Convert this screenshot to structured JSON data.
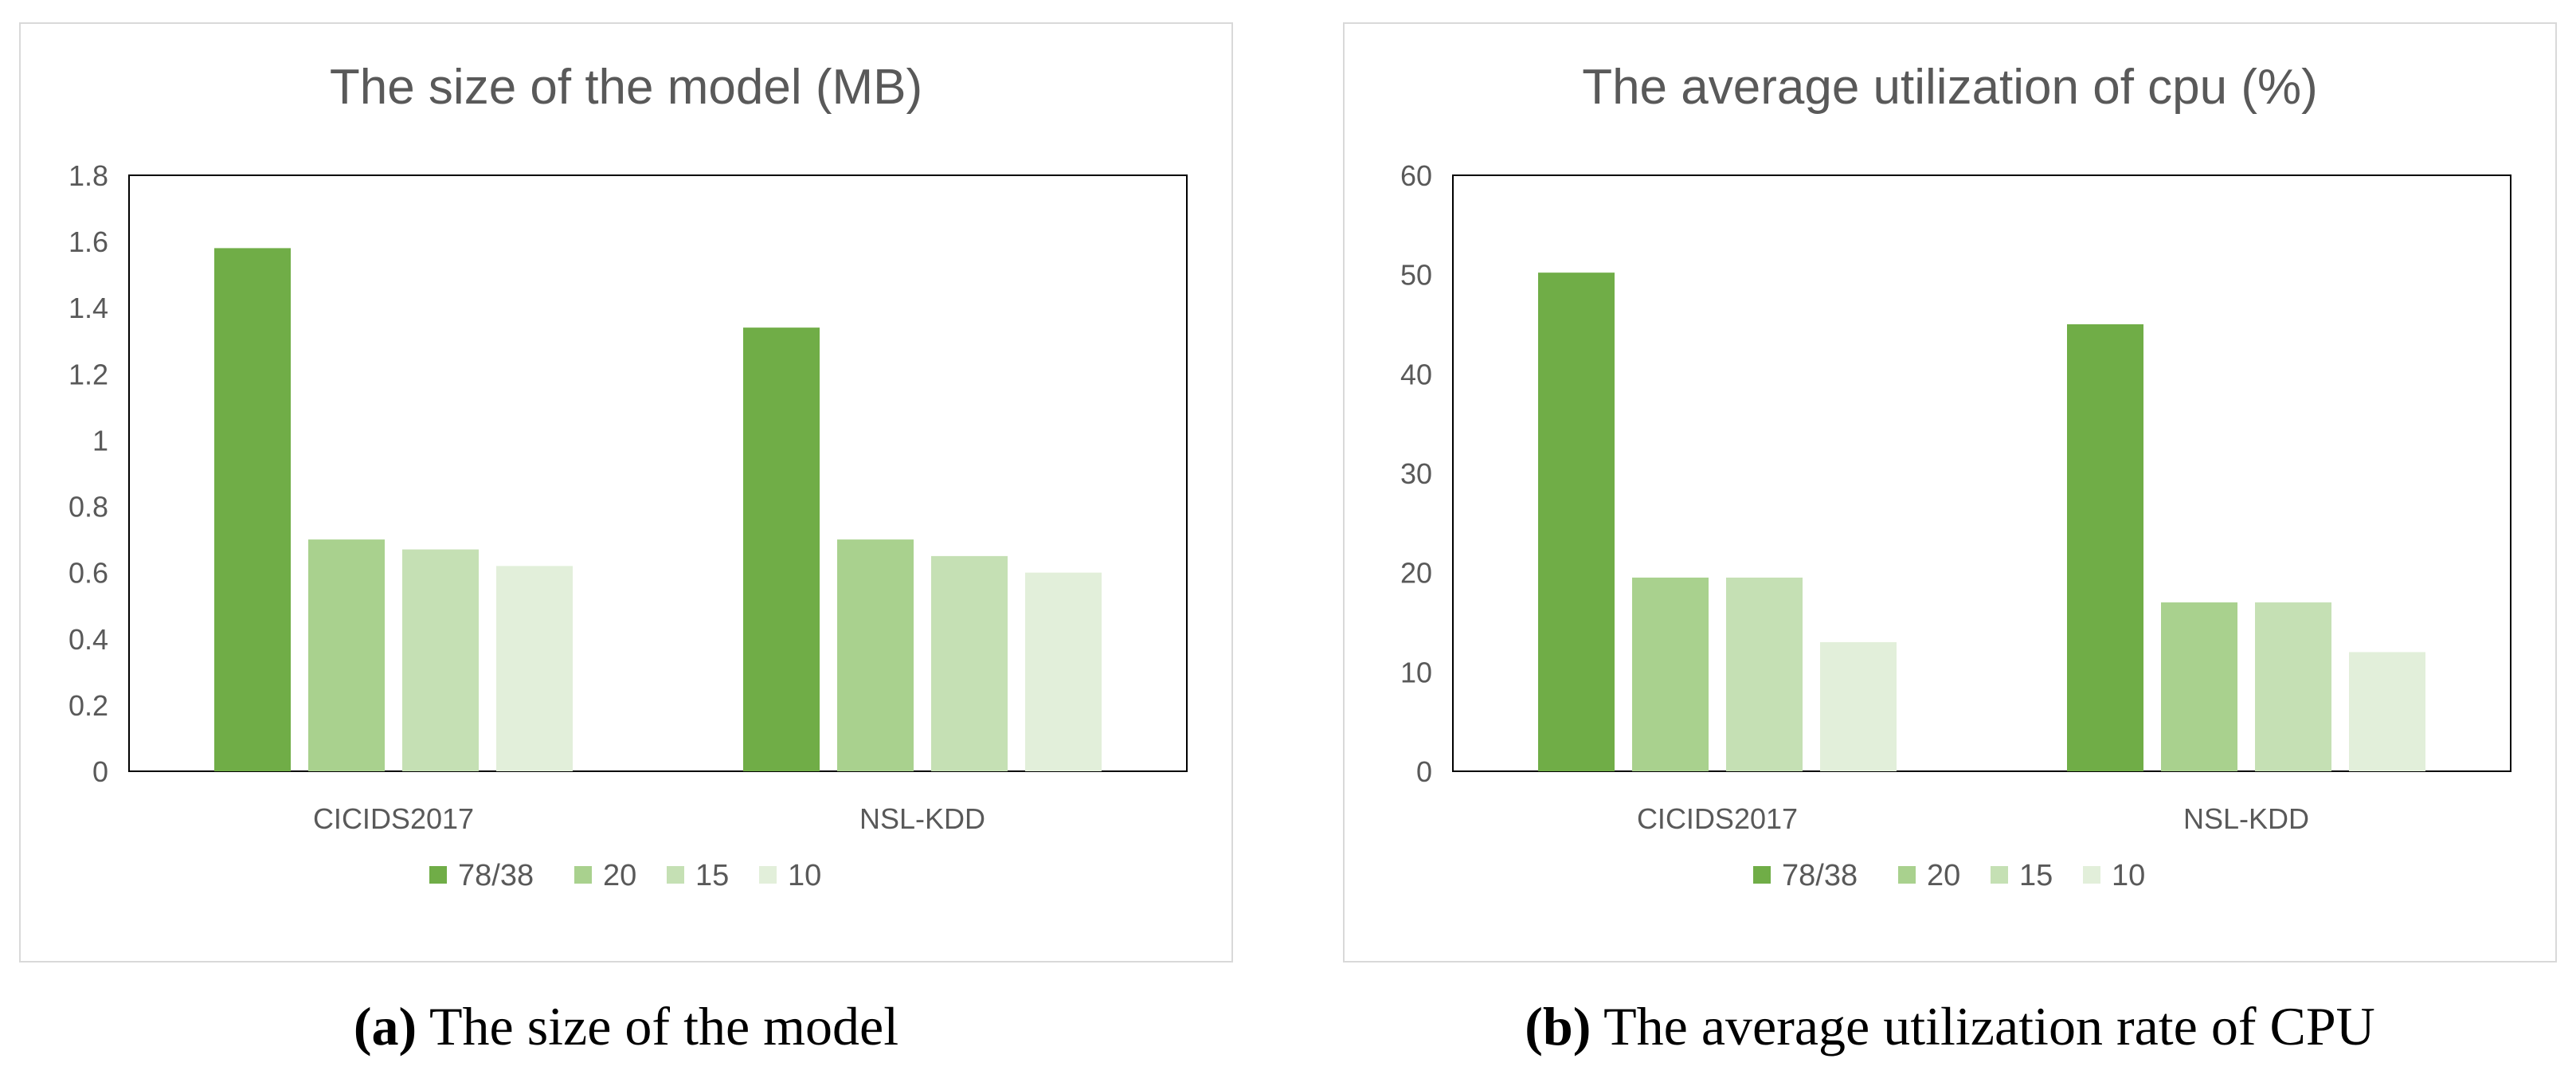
{
  "figure": {
    "captions": [
      {
        "tag": "a",
        "text": "The size of the model"
      },
      {
        "tag": "b",
        "text": "The average utilization rate of CPU"
      }
    ]
  },
  "chart_data": [
    {
      "type": "bar",
      "title": "The size of the model (MB)",
      "xlabel": "",
      "ylabel": "",
      "categories": [
        "CICIDS2017",
        "NSL-KDD"
      ],
      "ylim": [
        0,
        1.8
      ],
      "yticks": [
        0,
        0.2,
        0.4,
        0.6,
        0.8,
        1,
        1.2,
        1.4,
        1.6,
        1.8
      ],
      "ytick_labels": [
        "0",
        "0.2",
        "0.4",
        "0.6",
        "0.8",
        "1",
        "1.2",
        "1.4",
        "1.6",
        "1.8"
      ],
      "grid": false,
      "legend": "bottom",
      "series": [
        {
          "name": "78/38",
          "color": "#70ad47",
          "values": [
            1.58,
            1.34
          ]
        },
        {
          "name": "20",
          "color": "#a9d18e",
          "values": [
            0.7,
            0.7
          ]
        },
        {
          "name": "15",
          "color": "#c5e0b4",
          "values": [
            0.67,
            0.65
          ]
        },
        {
          "name": "10",
          "color": "#e2efda",
          "values": [
            0.62,
            0.6
          ]
        }
      ]
    },
    {
      "type": "bar",
      "title": "The average utilization of cpu (%)",
      "xlabel": "",
      "ylabel": "",
      "categories": [
        "CICIDS2017",
        "NSL-KDD"
      ],
      "ylim": [
        0,
        60
      ],
      "yticks": [
        0,
        10,
        20,
        30,
        40,
        50,
        60
      ],
      "ytick_labels": [
        "0",
        "10",
        "20",
        "30",
        "40",
        "50",
        "60"
      ],
      "grid": false,
      "legend": "bottom",
      "series": [
        {
          "name": "78/38",
          "color": "#70ad47",
          "values": [
            50.2,
            45.0
          ]
        },
        {
          "name": "20",
          "color": "#a9d18e",
          "values": [
            19.5,
            17.0
          ]
        },
        {
          "name": "15",
          "color": "#c5e0b4",
          "values": [
            19.5,
            17.0
          ]
        },
        {
          "name": "10",
          "color": "#e2efda",
          "values": [
            13.0,
            12.0
          ]
        }
      ]
    }
  ]
}
